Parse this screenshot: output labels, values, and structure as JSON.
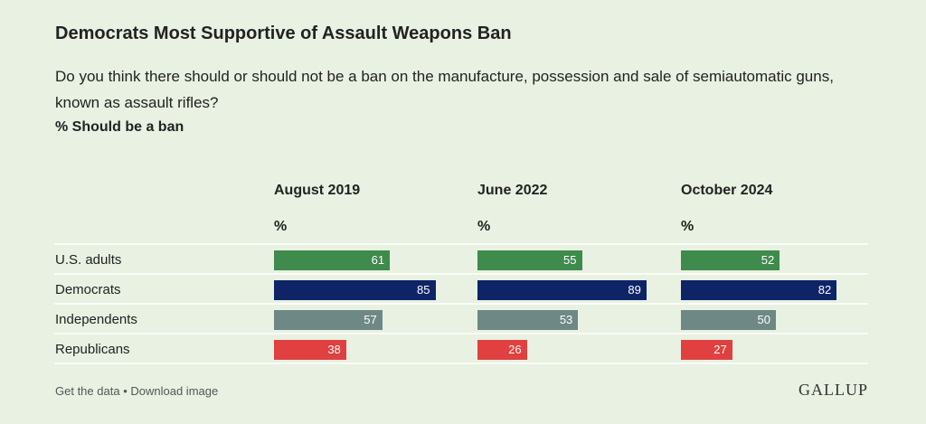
{
  "chart_data": {
    "type": "bar",
    "title": "Democrats Most Supportive of Assault Weapons Ban",
    "subtitle": "Do you think there should or should not be a ban on the manufacture, possession and sale of semiautomatic guns, known as assault rifles?",
    "value_description": "% Should be a ban",
    "column_unit": "%",
    "categories": [
      "U.S. adults",
      "Democrats",
      "Independents",
      "Republicans"
    ],
    "category_colors": [
      "#3f8a4d",
      "#0e2466",
      "#6e8886",
      "#e0403f"
    ],
    "series": [
      {
        "name": "August 2019",
        "values": [
          61,
          85,
          57,
          38
        ]
      },
      {
        "name": "June 2022",
        "values": [
          55,
          89,
          53,
          26
        ]
      },
      {
        "name": "October 2024",
        "values": [
          52,
          82,
          50,
          27
        ]
      }
    ],
    "footer": {
      "links": [
        "Get the data",
        "Download image"
      ],
      "separator": "•",
      "brand": "GALLUP"
    }
  }
}
